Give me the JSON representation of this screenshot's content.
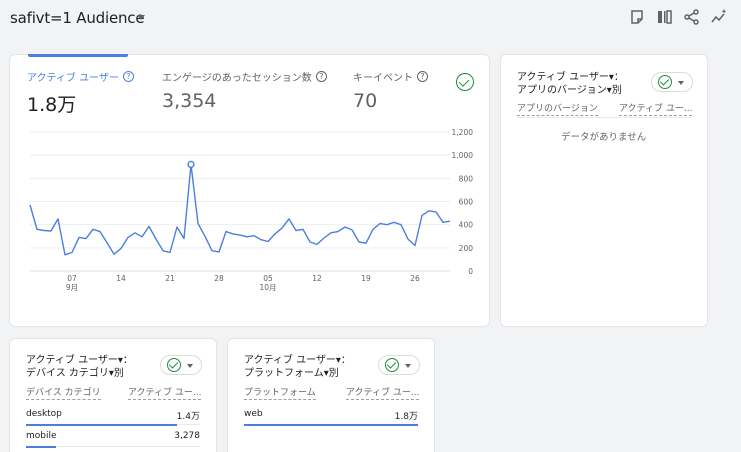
{
  "header": {
    "title": "safivt=1 Audience",
    "icons": [
      "note-icon",
      "compare-icon",
      "share-icon",
      "insights-icon"
    ]
  },
  "main_card": {
    "metrics": [
      {
        "label": "アクティブ ユーザー",
        "value": "1.8万"
      },
      {
        "label": "エンゲージのあったセッション数",
        "value": "3,354"
      },
      {
        "label": "キーイベント",
        "value": "70"
      }
    ]
  },
  "chart_data": {
    "type": "line",
    "y_ticks": [
      "1,200",
      "1,000",
      "800",
      "600",
      "400",
      "200",
      "0"
    ],
    "ylim": [
      0,
      1200
    ],
    "x_tick_labels": [
      {
        "day": "07",
        "month": "9月",
        "index": 6
      },
      {
        "day": "14",
        "month": "",
        "index": 13
      },
      {
        "day": "21",
        "month": "",
        "index": 20
      },
      {
        "day": "28",
        "month": "",
        "index": 27
      },
      {
        "day": "05",
        "month": "10月",
        "index": 34
      },
      {
        "day": "12",
        "month": "",
        "index": 41
      },
      {
        "day": "19",
        "month": "",
        "index": 48
      },
      {
        "day": "26",
        "month": "",
        "index": 55
      }
    ],
    "values": [
      570,
      360,
      350,
      345,
      450,
      140,
      160,
      290,
      280,
      360,
      340,
      245,
      145,
      195,
      290,
      330,
      295,
      385,
      275,
      175,
      160,
      380,
      280,
      920,
      410,
      300,
      175,
      165,
      340,
      320,
      310,
      295,
      305,
      270,
      255,
      320,
      370,
      450,
      350,
      360,
      250,
      230,
      285,
      330,
      340,
      380,
      355,
      250,
      240,
      360,
      410,
      400,
      420,
      400,
      275,
      220,
      480,
      520,
      510,
      420,
      430
    ],
    "highlight_index": 23,
    "color": "#4a7fe0"
  },
  "app_version_card": {
    "title_line1": "アクティブ ユーザー▾：",
    "title_line2": "アプリのバージョン▾別",
    "col1": "アプリのバージョン",
    "col2": "アクティブ ユー...",
    "empty": "データがありません"
  },
  "device_card": {
    "title_line1": "アクティブ ユーザー▾：",
    "title_line2": "デバイス カテゴリ▾別",
    "col1": "デバイス カテゴリ",
    "col2": "アクティブ ユー...",
    "rows": [
      {
        "label": "desktop",
        "value": "1.4万",
        "fraction": 1.0
      },
      {
        "label": "mobile",
        "value": "3,278",
        "fraction": 0.2
      }
    ]
  },
  "platform_card": {
    "title_line1": "アクティブ ユーザー▾：",
    "title_line2": "プラットフォーム▾別",
    "col1": "プラットフォーム",
    "col2": "アクティブ ユー...",
    "rows": [
      {
        "label": "web",
        "value": "1.8万",
        "fraction": 1.0
      }
    ]
  }
}
